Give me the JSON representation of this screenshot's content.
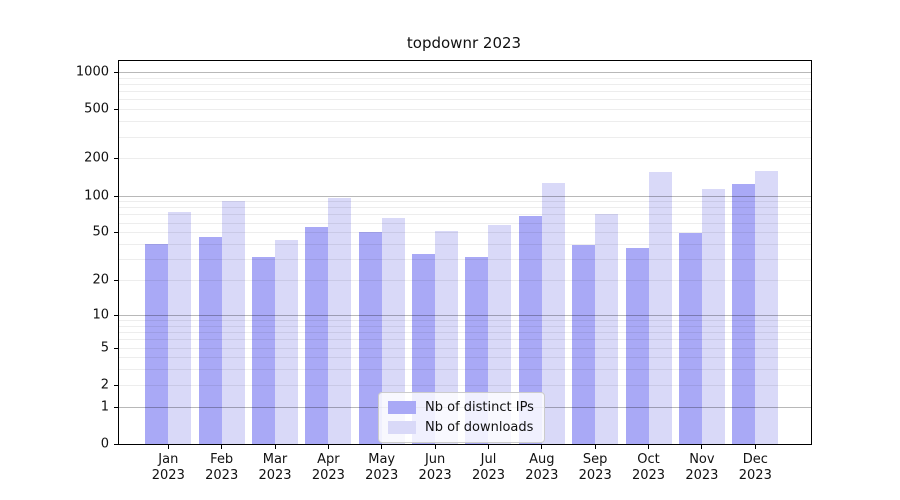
{
  "chart_data": {
    "type": "bar",
    "title": "topdownr 2023",
    "categories": [
      "Jan",
      "Feb",
      "Mar",
      "Apr",
      "May",
      "Jun",
      "Jul",
      "Aug",
      "Sep",
      "Oct",
      "Nov",
      "Dec"
    ],
    "year_label": "2023",
    "series": [
      {
        "name": "Nb of distinct IPs",
        "color": "#a9a9f6",
        "values": [
          40,
          46,
          31,
          55,
          50,
          33,
          31,
          68,
          39,
          37,
          49,
          125
        ]
      },
      {
        "name": "Nb of downloads",
        "color": "#d9d9f8",
        "values": [
          73,
          90,
          43,
          95,
          65,
          51,
          57,
          127,
          70,
          155,
          113,
          158
        ]
      }
    ],
    "y_scale": "log10(x+1)",
    "ylim": [
      0,
      1230
    ],
    "y_ticks": [
      1000,
      500,
      200,
      100,
      50,
      20,
      10,
      5,
      2,
      1,
      0
    ],
    "grid_minor": [
      2,
      3,
      4,
      5,
      6,
      7,
      8,
      9,
      20,
      30,
      40,
      50,
      60,
      70,
      80,
      90,
      200,
      300,
      400,
      500,
      600,
      700,
      800,
      900
    ],
    "grid_major": [
      1,
      10,
      100,
      1000
    ],
    "legend_position": "bottom-center"
  }
}
